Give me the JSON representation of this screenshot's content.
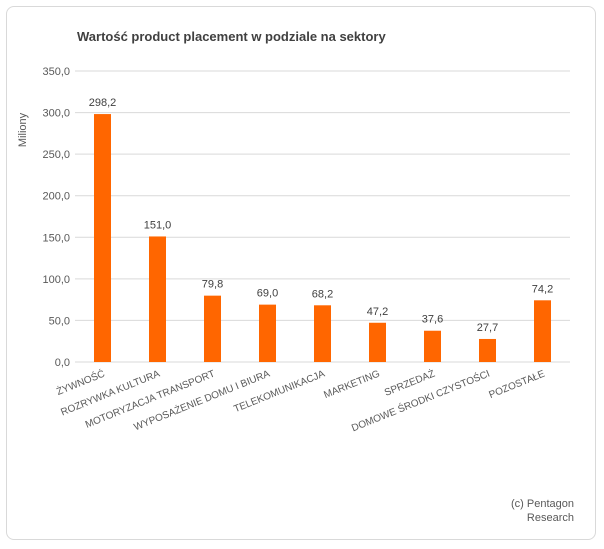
{
  "chart_data": {
    "type": "bar",
    "title": "Wartość product placement w podziale na sektory",
    "ylabel": "Miliony",
    "xlabel": "",
    "ylim": [
      0,
      350
    ],
    "yticks": [
      "0,0",
      "50,0",
      "100,0",
      "150,0",
      "200,0",
      "250,0",
      "300,0",
      "350,0"
    ],
    "ytick_values": [
      0,
      50,
      100,
      150,
      200,
      250,
      300,
      350
    ],
    "grid": true,
    "categories": [
      "ŻYWNOŚĆ",
      "ROZRYWKA KULTURA",
      "MOTORYZACJA TRANSPORT",
      "WYPOSAŻENIE DOMU I BIURA",
      "TELEKOMUNIKACJA",
      "MARKETING",
      "SPRZEDAŻ",
      "DOMOWE ŚRODKI CZYSTOŚCI",
      "POZOSTAŁE"
    ],
    "values": [
      298.2,
      151.0,
      79.8,
      69.0,
      68.2,
      47.2,
      37.6,
      27.7,
      74.2
    ],
    "value_labels": [
      "298,2",
      "151,0",
      "79,8",
      "69,0",
      "68,2",
      "47,2",
      "37,6",
      "27,7",
      "74,2"
    ],
    "bar_color": "#ff6600",
    "grid_color": "#d9d9d9"
  },
  "footer": {
    "source": "(c) Pentagon\nResearch"
  }
}
